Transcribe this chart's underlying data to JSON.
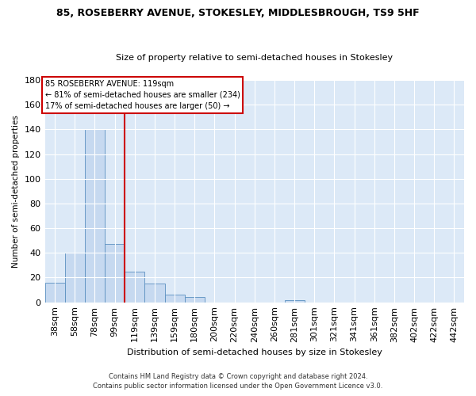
{
  "title1": "85, ROSEBERRY AVENUE, STOKESLEY, MIDDLESBROUGH, TS9 5HF",
  "title2": "Size of property relative to semi-detached houses in Stokesley",
  "xlabel": "Distribution of semi-detached houses by size in Stokesley",
  "ylabel": "Number of semi-detached properties",
  "bar_labels": [
    "38sqm",
    "58sqm",
    "78sqm",
    "99sqm",
    "119sqm",
    "139sqm",
    "159sqm",
    "180sqm",
    "200sqm",
    "220sqm",
    "240sqm",
    "260sqm",
    "281sqm",
    "301sqm",
    "321sqm",
    "341sqm",
    "361sqm",
    "382sqm",
    "402sqm",
    "422sqm",
    "442sqm"
  ],
  "bar_values": [
    16,
    40,
    140,
    47,
    25,
    15,
    6,
    4,
    0,
    0,
    0,
    0,
    2,
    0,
    0,
    0,
    0,
    0,
    0,
    0,
    0
  ],
  "bar_color": "#c6d9f0",
  "bar_edge_color": "#5a8fc0",
  "vline_color": "#cc0000",
  "ylim": [
    0,
    180
  ],
  "yticks": [
    0,
    20,
    40,
    60,
    80,
    100,
    120,
    140,
    160,
    180
  ],
  "annotation_title": "85 ROSEBERRY AVENUE: 119sqm",
  "annotation_line1": "← 81% of semi-detached houses are smaller (234)",
  "annotation_line2": "17% of semi-detached houses are larger (50) →",
  "footnote1": "Contains HM Land Registry data © Crown copyright and database right 2024.",
  "footnote2": "Contains public sector information licensed under the Open Government Licence v3.0.",
  "bg_color": "#ffffff",
  "plot_bg_color": "#dce9f7",
  "grid_color": "#ffffff",
  "annotation_box_color": "#ffffff",
  "annotation_box_edge": "#cc0000"
}
